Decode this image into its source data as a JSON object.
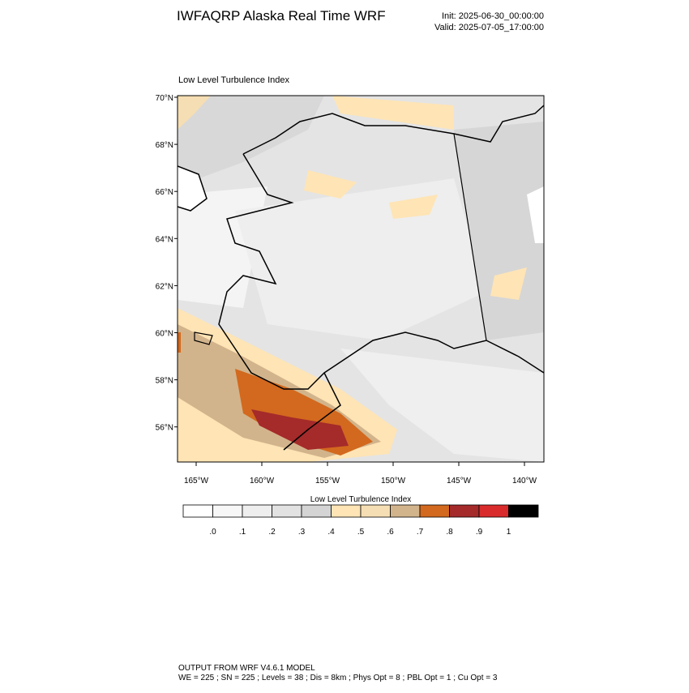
{
  "header": {
    "title": "IWFAQRP Alaska Real Time WRF",
    "init": "Init: 2025-06-30_00:00:00",
    "valid": "Valid: 2025-07-05_17:00:00"
  },
  "map": {
    "title": "Low Level Turbulence Index",
    "lat_labels": [
      "70°N",
      "68°N",
      "66°N",
      "64°N",
      "62°N",
      "60°N",
      "58°N",
      "56°N"
    ],
    "lon_labels": [
      "165°W",
      "160°W",
      "155°W",
      "150°W",
      "145°W",
      "140°W"
    ]
  },
  "colorbar": {
    "title": "Low Level Turbulence Index",
    "colors": [
      "#ffffff",
      "#f7f7f7",
      "#eeeeee",
      "#e2e2e2",
      "#d4d4d4",
      "#ffe4b5",
      "#f5deb3",
      "#d2b48c",
      "#d2691e",
      "#a52a2a",
      "#d92b2b",
      "#000000"
    ],
    "labels": [
      ".0",
      ".1",
      ".2",
      ".3",
      ".4",
      ".5",
      ".6",
      ".7",
      ".8",
      ".9",
      "1"
    ]
  },
  "footer": {
    "line1": "OUTPUT FROM WRF V4.6.1 MODEL",
    "line2": "WE = 225 ; SN = 225 ; Levels = 38 ; Dis = 8km ; Phys Opt = 8 ; PBL Opt = 1 ; Cu Opt = 3"
  }
}
